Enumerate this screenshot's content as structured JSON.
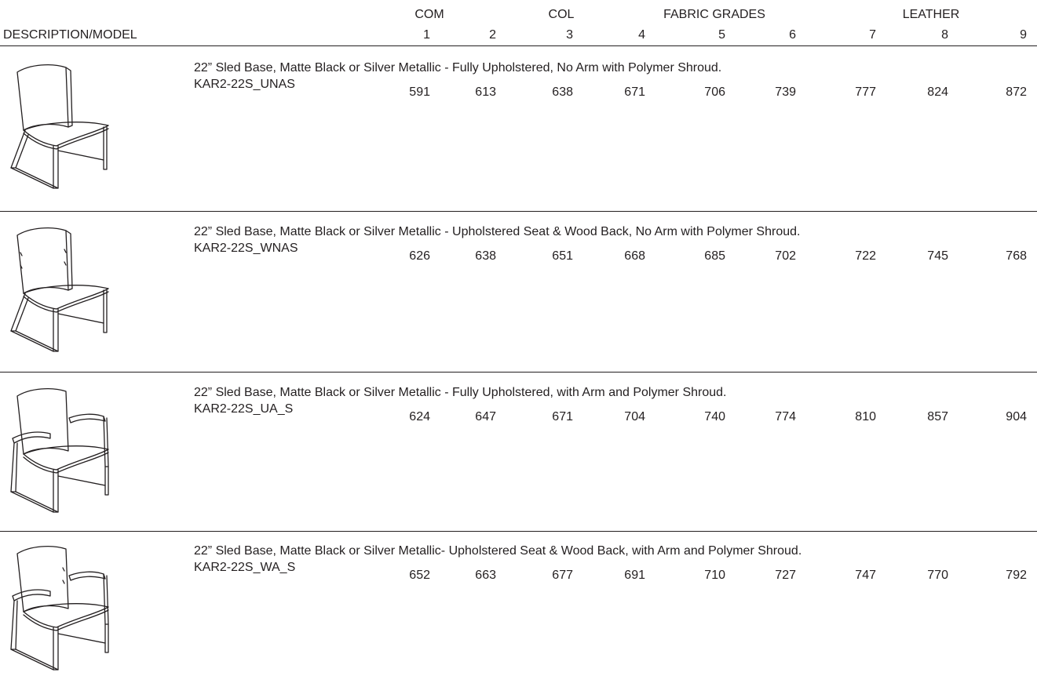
{
  "header": {
    "description_model": "DESCRIPTION/MODEL",
    "groups": {
      "com": "COM",
      "col": "COL",
      "fabric": "FABRIC GRADES",
      "leather": "LEATHER"
    },
    "grades": [
      "1",
      "2",
      "3",
      "4",
      "5",
      "6",
      "7",
      "8",
      "9"
    ]
  },
  "products": [
    {
      "description": "22” Sled Base, Matte Black or Silver Metallic - Fully Upholstered, No Arm with Polymer Shroud.",
      "model": "KAR2-22S_UNAS",
      "prices": [
        "591",
        "613",
        "638",
        "671",
        "706",
        "739",
        "777",
        "824",
        "872"
      ]
    },
    {
      "description": "22” Sled Base, Matte Black or Silver Metallic - Upholstered Seat & Wood Back, No Arm with Polymer Shroud.",
      "model": "KAR2-22S_WNAS",
      "prices": [
        "626",
        "638",
        "651",
        "668",
        "685",
        "702",
        "722",
        "745",
        "768"
      ]
    },
    {
      "description": "22” Sled Base, Matte Black or Silver Metallic - Fully Upholstered, with Arm and Polymer Shroud.",
      "model": "KAR2-22S_UA_S",
      "prices": [
        "624",
        "647",
        "671",
        "704",
        "740",
        "774",
        "810",
        "857",
        "904"
      ]
    },
    {
      "description": "22” Sled Base, Matte Black or Silver Metallic- Upholstered Seat & Wood Back, with Arm and Polymer Shroud.",
      "model": "KAR2-22S_WA_S",
      "prices": [
        "652",
        "663",
        "677",
        "691",
        "710",
        "727",
        "747",
        "770",
        "792"
      ]
    }
  ]
}
